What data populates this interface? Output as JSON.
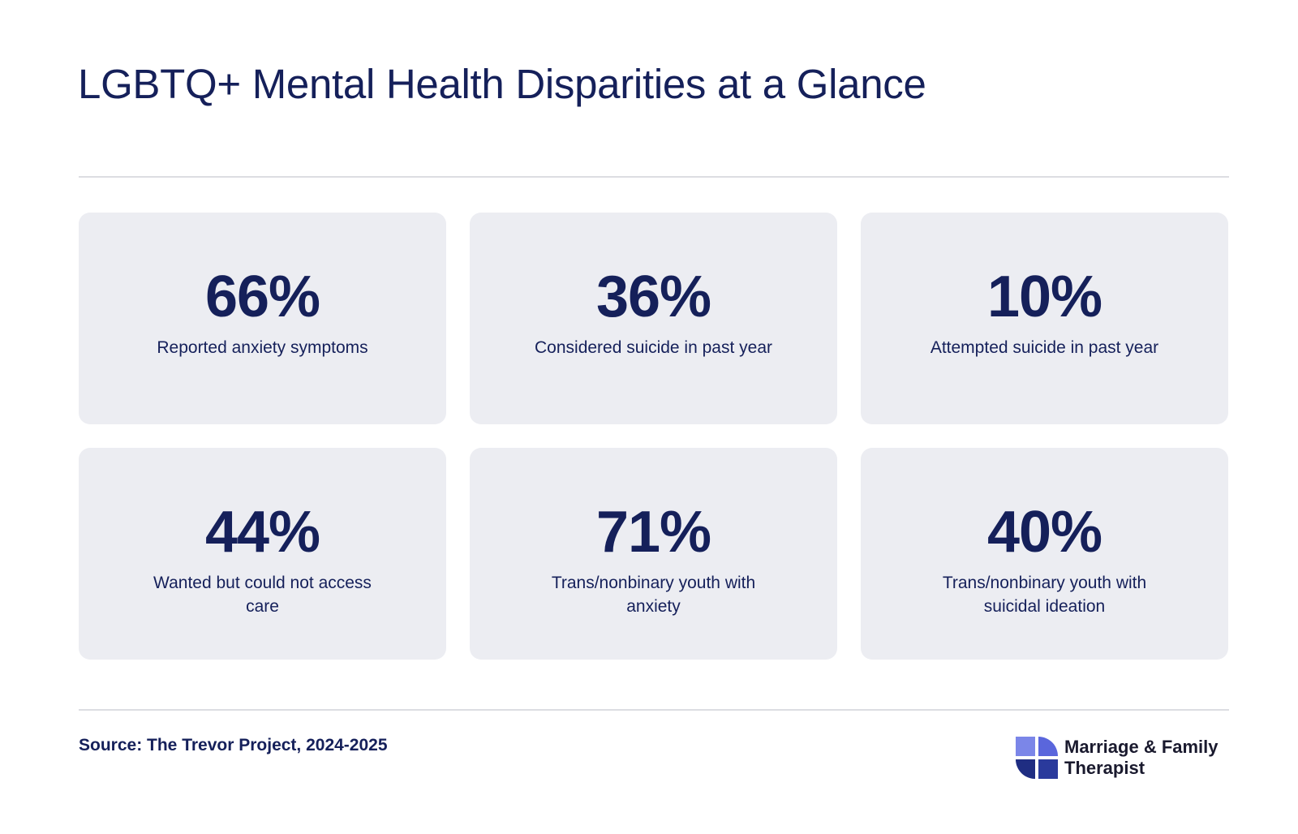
{
  "title": "LGBTQ+ Mental Health Disparities at a Glance",
  "colors": {
    "text": "#15205a",
    "card_background": "#ecedf2",
    "divider": "#dcdde2",
    "logo_light": "#7b86e8",
    "logo_dark": "#1f2d82"
  },
  "stats": [
    {
      "value": "66%",
      "label": "Reported anxiety symptoms"
    },
    {
      "value": "36%",
      "label": "Considered suicide in past year"
    },
    {
      "value": "10%",
      "label": "Attempted suicide in past year"
    },
    {
      "value": "44%",
      "label": "Wanted but could not access care"
    },
    {
      "value": "71%",
      "label": "Trans/nonbinary youth with anxiety"
    },
    {
      "value": "40%",
      "label": "Trans/nonbinary youth with suicidal ideation"
    }
  ],
  "footer": {
    "source": "Source: The Trevor Project, 2024-2025",
    "brand_line1": "Marriage & Family",
    "brand_line2": "Therapist",
    "brand_icon": "pinwheel-logo-icon"
  }
}
